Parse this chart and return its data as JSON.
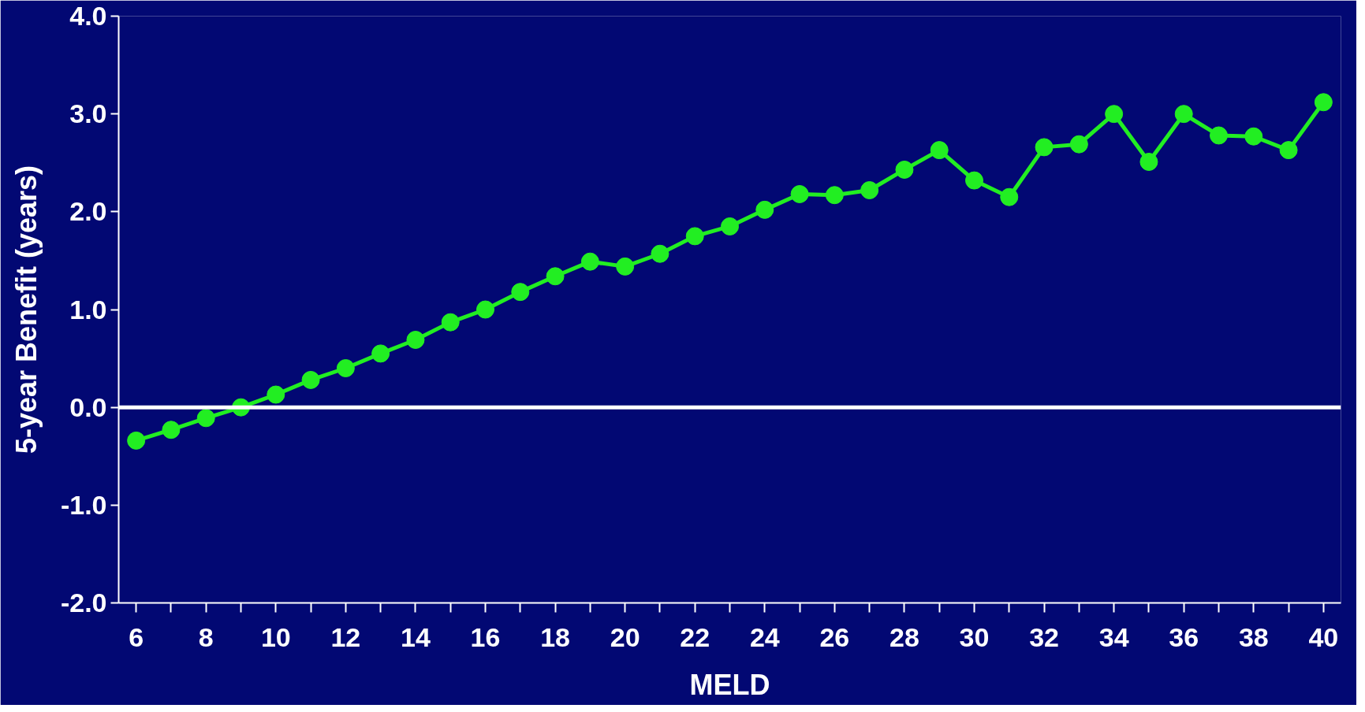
{
  "chart_data": {
    "type": "line",
    "xlabel": "MELD",
    "ylabel": "5-year Benefit (years)",
    "categories": [
      "6",
      null,
      "8",
      null,
      "10",
      null,
      "12",
      null,
      "14",
      null,
      "16",
      null,
      "18",
      null,
      "20",
      null,
      "22",
      null,
      "24",
      null,
      "26",
      null,
      "28",
      null,
      "30",
      null,
      "32",
      null,
      "34",
      null,
      "36",
      null,
      "38",
      null,
      "40"
    ],
    "series": [
      {
        "color": "#22ee22",
        "values": [
          -0.34,
          -0.23,
          -0.11,
          0.0,
          0.13,
          0.28,
          0.4,
          0.55,
          0.69,
          0.87,
          1.0,
          1.18,
          1.34,
          1.49,
          1.44,
          1.57,
          1.75,
          1.85,
          2.02,
          2.18,
          2.17,
          2.22,
          2.43,
          2.63,
          2.32,
          2.15,
          2.66,
          2.69,
          3.0,
          2.51,
          3.0,
          2.78,
          2.77,
          2.63,
          3.12
        ]
      }
    ],
    "ylim": [
      -2,
      4
    ],
    "yticks": [
      {
        "value": -2,
        "label": "-2.0"
      },
      {
        "value": -1,
        "label": "-1.0"
      },
      {
        "value": 0,
        "label": "0.0"
      },
      {
        "value": 1,
        "label": "1.0"
      },
      {
        "value": 2,
        "label": "2.0"
      },
      {
        "value": 3,
        "label": "3.0"
      },
      {
        "value": 4,
        "label": "4.0"
      }
    ],
    "ref_lines": [
      {
        "axis": "y",
        "value": 0,
        "color": "#ffffff"
      }
    ],
    "marker": "circle",
    "grid": false
  }
}
